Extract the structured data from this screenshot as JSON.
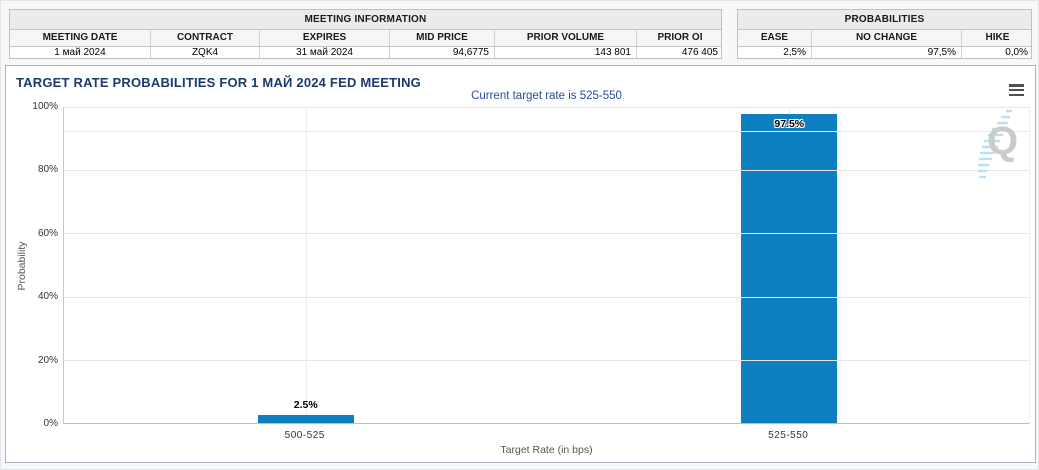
{
  "meeting_information": {
    "title": "MEETING INFORMATION",
    "columns": [
      "MEETING DATE",
      "CONTRACT",
      "EXPIRES",
      "MID PRICE",
      "PRIOR VOLUME",
      "PRIOR OI"
    ],
    "values": [
      "1 май 2024",
      "ZQK4",
      "31 май 2024",
      "94,6775",
      "143 801",
      "476 405"
    ]
  },
  "probabilities_summary": {
    "title": "PROBABILITIES",
    "columns": [
      "EASE",
      "NO CHANGE",
      "HIKE"
    ],
    "values": [
      "2,5%",
      "97,5%",
      "0,0%"
    ]
  },
  "chart_data": {
    "type": "bar",
    "title": "TARGET RATE PROBABILITIES FOR 1 МАЙ 2024 FED MEETING",
    "subtitle": "Current target rate is 525-550",
    "categories": [
      "500-525",
      "525-550"
    ],
    "values": [
      2.5,
      97.5
    ],
    "data_labels": [
      "2.5%",
      "97.5%"
    ],
    "xlabel": "Target Rate (in bps)",
    "ylabel": "Probability",
    "ylim": [
      0,
      100
    ],
    "yticks": [
      "0%",
      "20%",
      "40%",
      "60%",
      "80%",
      "100%"
    ],
    "ytick_values": [
      0,
      20,
      40,
      60,
      80,
      100
    ],
    "grid": true,
    "legend": "none",
    "bar_color": "#0e7fc1",
    "faint_line_percent": 92.5
  },
  "icons": {
    "chart_menu": "hamburger-menu-icon",
    "watermark_letter": "Q"
  },
  "colors": {
    "bar": "#0e7fc1",
    "chart_title": "#1d3a6e",
    "chart_subtitle": "#2b4b9b",
    "table_title_bg": "#ebebeb",
    "table_header_bg": "#f6f6f6",
    "panel_border": "#aab3bf",
    "gridline": "#e7e7e7"
  }
}
